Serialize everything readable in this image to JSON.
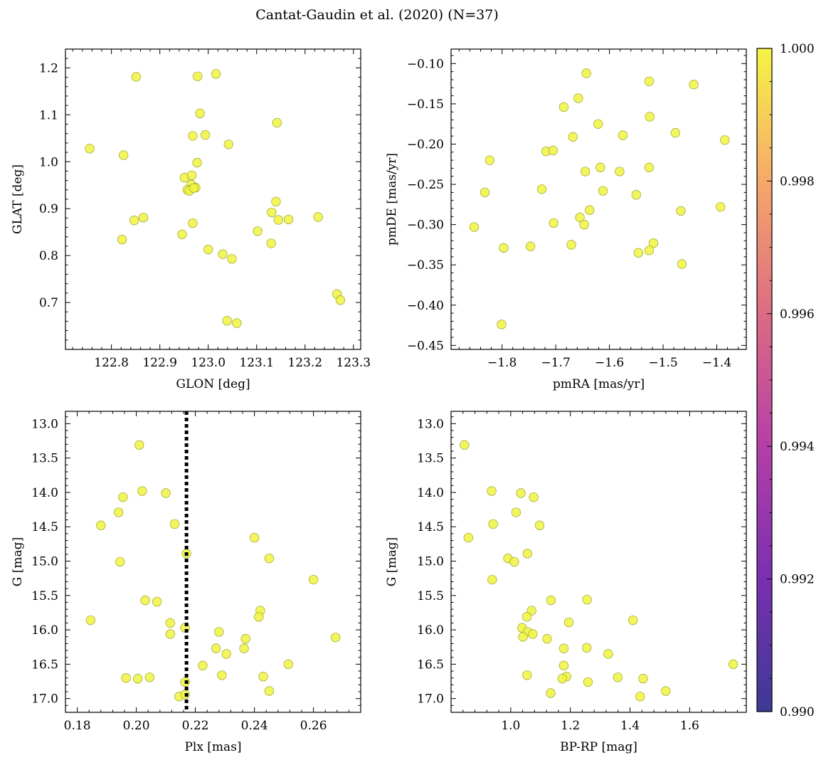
{
  "figure": {
    "title": "Cantat-Gaudin et al. (2020) (N=37)"
  },
  "chart_data": [
    {
      "type": "scatter",
      "xlabel": "GLON [deg]",
      "ylabel": "GLAT [deg]",
      "xlim": [
        122.705,
        123.315
      ],
      "ylim": [
        0.6,
        1.24
      ],
      "xticks": [
        122.8,
        122.9,
        123.0,
        123.1,
        123.2,
        123.3
      ],
      "xtick_labels": [
        "122.8",
        "122.9",
        "123.0",
        "123.1",
        "123.2",
        "123.3"
      ],
      "yticks": [
        0.7,
        0.8,
        0.9,
        1.0,
        1.1,
        1.2
      ],
      "ytick_labels": [
        "0.7",
        "0.8",
        "0.9",
        "1.0",
        "1.1",
        "1.2"
      ],
      "points": [
        [
          122.755,
          1.028
        ],
        [
          122.851,
          1.181
        ],
        [
          122.978,
          1.182
        ],
        [
          123.016,
          1.187
        ],
        [
          122.983,
          1.103
        ],
        [
          122.968,
          1.055
        ],
        [
          122.994,
          1.057
        ],
        [
          123.142,
          1.083
        ],
        [
          123.042,
          1.037
        ],
        [
          122.825,
          1.014
        ],
        [
          122.977,
          0.998
        ],
        [
          122.951,
          0.966
        ],
        [
          122.966,
          0.971
        ],
        [
          122.965,
          0.951
        ],
        [
          122.957,
          0.94
        ],
        [
          122.974,
          0.945
        ],
        [
          122.961,
          0.938
        ],
        [
          123.14,
          0.915
        ],
        [
          123.131,
          0.892
        ],
        [
          123.145,
          0.876
        ],
        [
          123.166,
          0.877
        ],
        [
          123.227,
          0.882
        ],
        [
          122.847,
          0.875
        ],
        [
          122.866,
          0.881
        ],
        [
          122.968,
          0.869
        ],
        [
          123.102,
          0.852
        ],
        [
          122.946,
          0.845
        ],
        [
          122.822,
          0.834
        ],
        [
          123.13,
          0.826
        ],
        [
          123.0,
          0.813
        ],
        [
          123.03,
          0.803
        ],
        [
          123.049,
          0.793
        ],
        [
          123.266,
          0.718
        ],
        [
          123.273,
          0.705
        ],
        [
          123.039,
          0.661
        ],
        [
          123.059,
          0.656
        ],
        [
          122.97,
          0.944
        ]
      ]
    },
    {
      "type": "scatter",
      "xlabel": "pmRA [mas/yr]",
      "ylabel": "pmDE [mas/yr]",
      "xlim": [
        -1.895,
        -1.345
      ],
      "ylim": [
        -0.455,
        -0.082
      ],
      "xticks": [
        -1.8,
        -1.7,
        -1.6,
        -1.5,
        -1.4
      ],
      "xtick_labels": [
        "−1.8",
        "−1.7",
        "−1.6",
        "−1.5",
        "−1.4"
      ],
      "yticks": [
        -0.45,
        -0.4,
        -0.35,
        -0.3,
        -0.25,
        -0.2,
        -0.15,
        -0.1
      ],
      "ytick_labels": [
        "−0.45",
        "−0.40",
        "−0.35",
        "−0.30",
        "−0.25",
        "−0.20",
        "−0.15",
        "−0.10"
      ],
      "points": [
        [
          -1.643,
          -0.112
        ],
        [
          -1.526,
          -0.122
        ],
        [
          -1.443,
          -0.126
        ],
        [
          -1.658,
          -0.143
        ],
        [
          -1.685,
          -0.154
        ],
        [
          -1.525,
          -0.166
        ],
        [
          -1.621,
          -0.175
        ],
        [
          -1.477,
          -0.186
        ],
        [
          -1.668,
          -0.191
        ],
        [
          -1.575,
          -0.189
        ],
        [
          -1.385,
          -0.195
        ],
        [
          -1.718,
          -0.209
        ],
        [
          -1.705,
          -0.208
        ],
        [
          -1.823,
          -0.22
        ],
        [
          -1.617,
          -0.229
        ],
        [
          -1.526,
          -0.229
        ],
        [
          -1.645,
          -0.234
        ],
        [
          -1.581,
          -0.234
        ],
        [
          -1.726,
          -0.256
        ],
        [
          -1.612,
          -0.258
        ],
        [
          -1.832,
          -0.26
        ],
        [
          -1.55,
          -0.263
        ],
        [
          -1.637,
          -0.282
        ],
        [
          -1.467,
          -0.283
        ],
        [
          -1.393,
          -0.278
        ],
        [
          -1.655,
          -0.291
        ],
        [
          -1.704,
          -0.298
        ],
        [
          -1.647,
          -0.3
        ],
        [
          -1.852,
          -0.303
        ],
        [
          -1.671,
          -0.325
        ],
        [
          -1.747,
          -0.327
        ],
        [
          -1.518,
          -0.323
        ],
        [
          -1.797,
          -0.329
        ],
        [
          -1.526,
          -0.332
        ],
        [
          -1.546,
          -0.335
        ],
        [
          -1.465,
          -0.349
        ],
        [
          -1.801,
          -0.424
        ]
      ]
    },
    {
      "type": "scatter",
      "xlabel": "Plx [mas]",
      "ylabel": "G [mag]",
      "xlim": [
        0.176,
        0.276
      ],
      "ylim": [
        17.2,
        12.82
      ],
      "y_inverted": true,
      "xticks": [
        0.18,
        0.2,
        0.22,
        0.24,
        0.26
      ],
      "xtick_labels": [
        "0.18",
        "0.20",
        "0.22",
        "0.24",
        "0.26"
      ],
      "yticks": [
        13.0,
        13.5,
        14.0,
        14.5,
        15.0,
        15.5,
        16.0,
        16.5,
        17.0
      ],
      "ytick_labels": [
        "13.0",
        "13.5",
        "14.0",
        "14.5",
        "15.0",
        "15.5",
        "16.0",
        "16.5",
        "17.0"
      ],
      "vline": {
        "x": 0.217,
        "style": "dotted",
        "color": "#000000"
      },
      "points": [
        [
          0.201,
          13.31
        ],
        [
          0.202,
          13.98
        ],
        [
          0.21,
          14.01
        ],
        [
          0.1955,
          14.07
        ],
        [
          0.194,
          14.29
        ],
        [
          0.213,
          14.46
        ],
        [
          0.188,
          14.48
        ],
        [
          0.24,
          14.66
        ],
        [
          0.217,
          14.89
        ],
        [
          0.245,
          14.96
        ],
        [
          0.1945,
          15.01
        ],
        [
          0.26,
          15.27
        ],
        [
          0.203,
          15.57
        ],
        [
          0.207,
          15.59
        ],
        [
          0.242,
          15.72
        ],
        [
          0.2415,
          15.81
        ],
        [
          0.1845,
          15.86
        ],
        [
          0.2115,
          15.9
        ],
        [
          0.2165,
          15.97
        ],
        [
          0.228,
          16.03
        ],
        [
          0.2115,
          16.06
        ],
        [
          0.237,
          16.13
        ],
        [
          0.2675,
          16.11
        ],
        [
          0.227,
          16.27
        ],
        [
          0.2365,
          16.27
        ],
        [
          0.2305,
          16.35
        ],
        [
          0.2515,
          16.5
        ],
        [
          0.2225,
          16.52
        ],
        [
          0.229,
          16.66
        ],
        [
          0.243,
          16.68
        ],
        [
          0.1965,
          16.7
        ],
        [
          0.2005,
          16.71
        ],
        [
          0.2045,
          16.69
        ],
        [
          0.2165,
          16.76
        ],
        [
          0.245,
          16.89
        ],
        [
          0.2145,
          16.97
        ],
        [
          0.2165,
          16.94
        ]
      ]
    },
    {
      "type": "scatter",
      "xlabel": "BP-RP [mag]",
      "ylabel": "G [mag]",
      "xlim": [
        0.8,
        1.79
      ],
      "ylim": [
        17.2,
        12.82
      ],
      "y_inverted": true,
      "xticks": [
        1.0,
        1.2,
        1.4,
        1.6
      ],
      "xtick_labels": [
        "1.0",
        "1.2",
        "1.4",
        "1.6"
      ],
      "yticks": [
        13.0,
        13.5,
        14.0,
        14.5,
        15.0,
        15.5,
        16.0,
        16.5,
        17.0
      ],
      "ytick_labels": [
        "13.0",
        "13.5",
        "14.0",
        "14.5",
        "15.0",
        "15.5",
        "16.0",
        "16.5",
        "17.0"
      ],
      "points": [
        [
          0.845,
          13.31
        ],
        [
          0.936,
          13.98
        ],
        [
          1.034,
          14.01
        ],
        [
          1.077,
          14.07
        ],
        [
          1.018,
          14.29
        ],
        [
          0.941,
          14.46
        ],
        [
          1.097,
          14.48
        ],
        [
          0.858,
          14.66
        ],
        [
          1.056,
          14.89
        ],
        [
          0.991,
          14.96
        ],
        [
          1.012,
          15.01
        ],
        [
          0.938,
          15.27
        ],
        [
          1.135,
          15.57
        ],
        [
          1.256,
          15.56
        ],
        [
          1.07,
          15.72
        ],
        [
          1.054,
          15.81
        ],
        [
          1.41,
          15.86
        ],
        [
          1.195,
          15.89
        ],
        [
          1.038,
          15.97
        ],
        [
          1.056,
          16.03
        ],
        [
          1.074,
          16.06
        ],
        [
          1.041,
          16.1
        ],
        [
          1.122,
          16.13
        ],
        [
          1.178,
          16.27
        ],
        [
          1.255,
          16.26
        ],
        [
          1.327,
          16.35
        ],
        [
          1.746,
          16.5
        ],
        [
          1.178,
          16.52
        ],
        [
          1.055,
          16.66
        ],
        [
          1.187,
          16.68
        ],
        [
          1.173,
          16.71
        ],
        [
          1.359,
          16.69
        ],
        [
          1.444,
          16.71
        ],
        [
          1.259,
          16.76
        ],
        [
          1.52,
          16.89
        ],
        [
          1.134,
          16.92
        ],
        [
          1.434,
          16.97
        ]
      ]
    }
  ],
  "colorbar": {
    "min": 0.99,
    "max": 1.0,
    "ticks": [
      0.99,
      0.992,
      0.994,
      0.996,
      0.998,
      1.0
    ],
    "tick_labels": [
      "0.990",
      "0.992",
      "0.994",
      "0.996",
      "0.998",
      "1.000"
    ],
    "colormap_stops": [
      "#3c3a95",
      "#7a2fb0",
      "#b53fa8",
      "#dc6b83",
      "#f6a86a",
      "#f5f545"
    ]
  },
  "styles": {
    "marker_fill": "#f0f540",
    "marker_edge": "#9aa030",
    "marker_alpha": 0.85
  }
}
